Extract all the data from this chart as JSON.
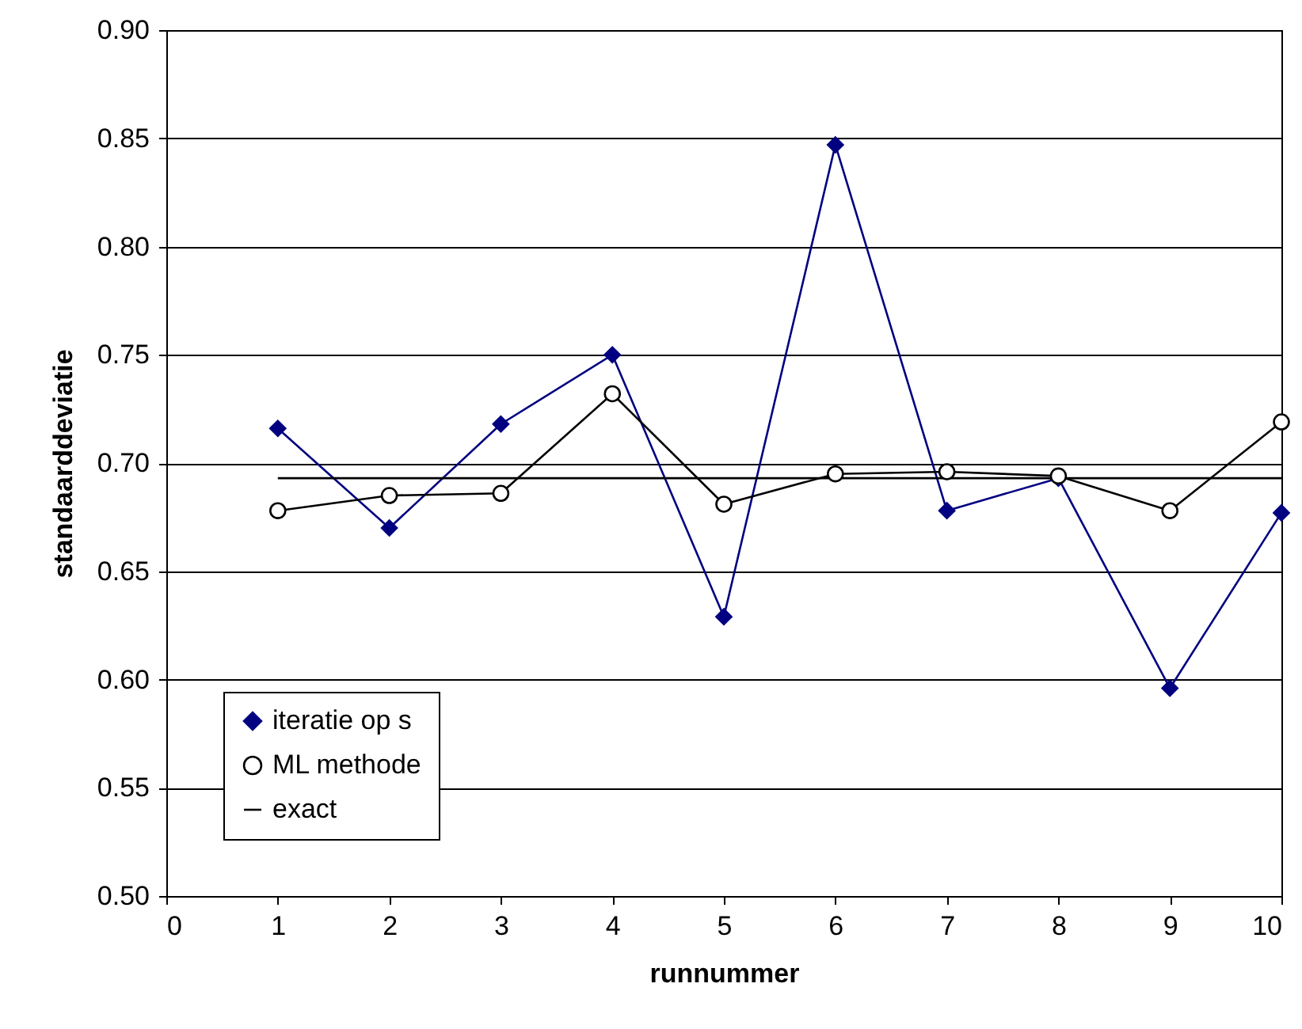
{
  "chart_data": {
    "type": "line",
    "xlabel": "runnummer",
    "ylabel": "standaarddeviatie",
    "xlim": [
      0,
      10
    ],
    "xticks": [
      0,
      1,
      2,
      3,
      4,
      5,
      6,
      7,
      8,
      9,
      10
    ],
    "ylim": [
      0.5,
      0.9
    ],
    "yticks": [
      {
        "value": 0.5,
        "label": "0.50"
      },
      {
        "value": 0.55,
        "label": "0.55"
      },
      {
        "value": 0.6,
        "label": "0.60"
      },
      {
        "value": 0.65,
        "label": "0.65"
      },
      {
        "value": 0.7,
        "label": "0.70"
      },
      {
        "value": 0.75,
        "label": "0.75"
      },
      {
        "value": 0.8,
        "label": "0.80"
      },
      {
        "value": 0.85,
        "label": "0.85"
      },
      {
        "value": 0.9,
        "label": "0.90"
      }
    ],
    "x": [
      1,
      2,
      3,
      4,
      5,
      6,
      7,
      8,
      9,
      10
    ],
    "grid": "y",
    "legend": "bottom left",
    "series": [
      {
        "name": "iteratie op s",
        "color": "#000080",
        "marker": "diamond",
        "values": [
          0.716,
          0.67,
          0.718,
          0.75,
          0.629,
          0.847,
          0.678,
          0.693,
          0.596,
          0.677
        ]
      },
      {
        "name": "ML methode",
        "color": "#000000",
        "marker": "circle",
        "values": [
          0.678,
          0.685,
          0.686,
          0.732,
          0.681,
          0.695,
          0.696,
          0.694,
          0.678,
          0.719
        ]
      },
      {
        "name": "exact",
        "color": "#000000",
        "marker": "none",
        "x": [
          1,
          10
        ],
        "values": [
          0.693,
          0.693
        ]
      }
    ]
  }
}
